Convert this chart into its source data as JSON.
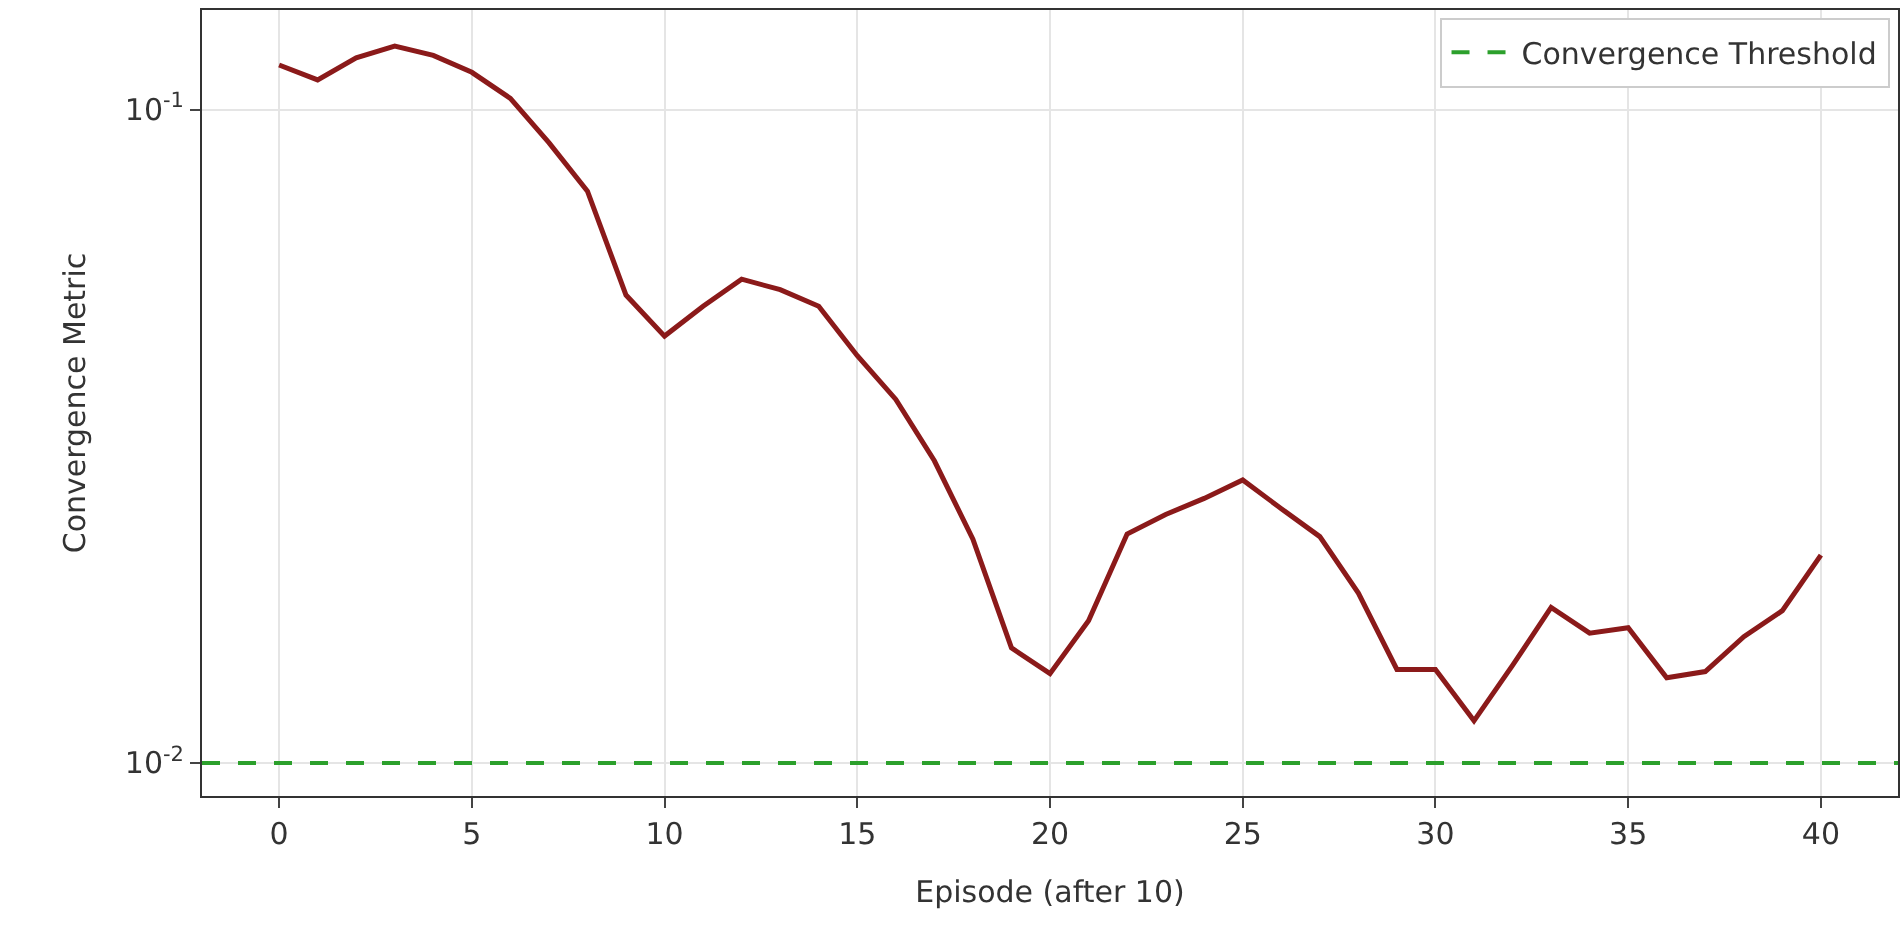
{
  "chart_data": {
    "type": "line",
    "xlabel": "Episode (after 10)",
    "ylabel": "Convergence Metric",
    "x": [
      0,
      1,
      2,
      3,
      4,
      5,
      6,
      7,
      8,
      9,
      10,
      11,
      12,
      13,
      14,
      15,
      16,
      17,
      18,
      19,
      20,
      21,
      22,
      23,
      24,
      25,
      26,
      27,
      28,
      29,
      30,
      31,
      32,
      33,
      34,
      35,
      36,
      37,
      38,
      39,
      40
    ],
    "series": [
      {
        "color": "#8b1a1a",
        "values": [
          0.117,
          0.111,
          0.12,
          0.125,
          0.121,
          0.114,
          0.104,
          0.089,
          0.075,
          0.052,
          0.045,
          0.05,
          0.055,
          0.053,
          0.05,
          0.042,
          0.036,
          0.029,
          0.022,
          0.015,
          0.0137,
          0.0165,
          0.0224,
          0.024,
          0.0254,
          0.0271,
          0.0245,
          0.0222,
          0.0182,
          0.0139,
          0.0139,
          0.0116,
          0.0141,
          0.0173,
          0.0158,
          0.0161,
          0.0135,
          0.0138,
          0.0156,
          0.0171,
          0.0208
        ]
      }
    ],
    "log": "y",
    "xlim": [
      -2,
      42
    ],
    "ylim": [
      0.0089,
      0.142
    ],
    "xticks": [
      0,
      5,
      10,
      15,
      20,
      25,
      30,
      35,
      40
    ],
    "yticks": [
      {
        "value": 0.1,
        "label": "10$^{-1}$"
      },
      {
        "value": 0.01,
        "label": "10$^{-2}$"
      }
    ],
    "ref_lines": [
      {
        "axis": "y",
        "value": 0.01,
        "label": "Convergence Threshold",
        "color": "#2ca02c",
        "line_style": "dashed"
      }
    ],
    "grid": true,
    "legend": "top right",
    "line_style": "solid",
    "marker": "none"
  }
}
